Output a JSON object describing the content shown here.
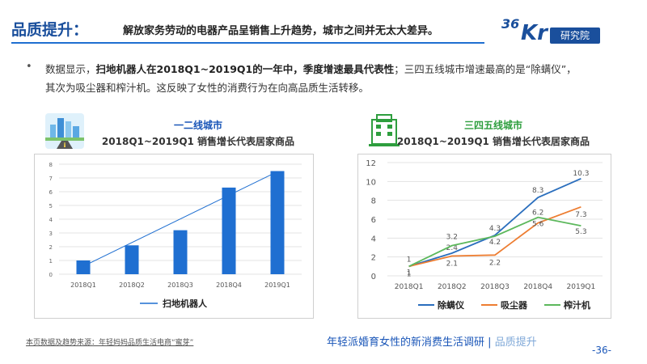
{
  "header": {
    "title": "品质提升：",
    "subtitle": "解放家务劳动的电器产品呈销售上升趋势，城市之间并无太大差异。"
  },
  "logo": {
    "num": "36",
    "kr": "Kr",
    "label": "研究院"
  },
  "intro": {
    "bullet": "•",
    "part1": "数据显示，",
    "bold1": "扫地机器人在2018Q1~2019Q1的一年中，季度增速最具代表性",
    "part2": "；三四五线城市增速最高的是“除螨仪”，",
    "part3": "其次为吸尘器和榨汁机。这反映了女性的消费行为在向高品质生活转移。"
  },
  "chart_left_head": {
    "label": "一二线城市",
    "title": "2018Q1~2019Q1 销售增长代表居家商品",
    "icon": "city-skyline-icon"
  },
  "chart_right_head": {
    "label": "三四五线城市",
    "title": "2018Q1~2019Q1 销售增长代表居家商品",
    "icon": "building-icon"
  },
  "chart_data": [
    {
      "type": "bar",
      "categories": [
        "2018Q1",
        "2018Q2",
        "2018Q3",
        "2018Q4",
        "2019Q1"
      ],
      "series": [
        {
          "name": "扫地机器人",
          "values": [
            1.0,
            2.1,
            3.2,
            6.3,
            7.5
          ],
          "color": "#1f6fd1"
        }
      ],
      "trendline": true,
      "ylim": [
        0,
        8
      ],
      "yticks": [
        0,
        1,
        2,
        3,
        4,
        5,
        6,
        7,
        8
      ],
      "legend_position": "bottom",
      "grid": "horizontal"
    },
    {
      "type": "line",
      "categories": [
        "2018Q1",
        "2018Q2",
        "2018Q3",
        "2018Q4",
        "2019Q1"
      ],
      "series": [
        {
          "name": "除螨仪",
          "values": [
            1,
            2.4,
            4.3,
            8.3,
            10.3
          ],
          "color": "#2a6ebd"
        },
        {
          "name": "吸尘器",
          "values": [
            1,
            2.1,
            2.2,
            5.6,
            7.3
          ],
          "color": "#ed7d31"
        },
        {
          "name": "榨汁机",
          "values": [
            1,
            3.2,
            4.2,
            6.2,
            5.3
          ],
          "color": "#5cb85c"
        }
      ],
      "ylim": [
        0,
        12
      ],
      "yticks": [
        0,
        2,
        4,
        6,
        8,
        10,
        12
      ],
      "legend_position": "bottom",
      "grid": "horizontal"
    }
  ],
  "footer": {
    "source": "本页数据及趋势来源：年轻妈妈品质生活电商“蜜芽”",
    "report": "年轻派婚育女性的新消费生活调研",
    "sep": "|",
    "section": "品质提升",
    "page": "-36-"
  }
}
